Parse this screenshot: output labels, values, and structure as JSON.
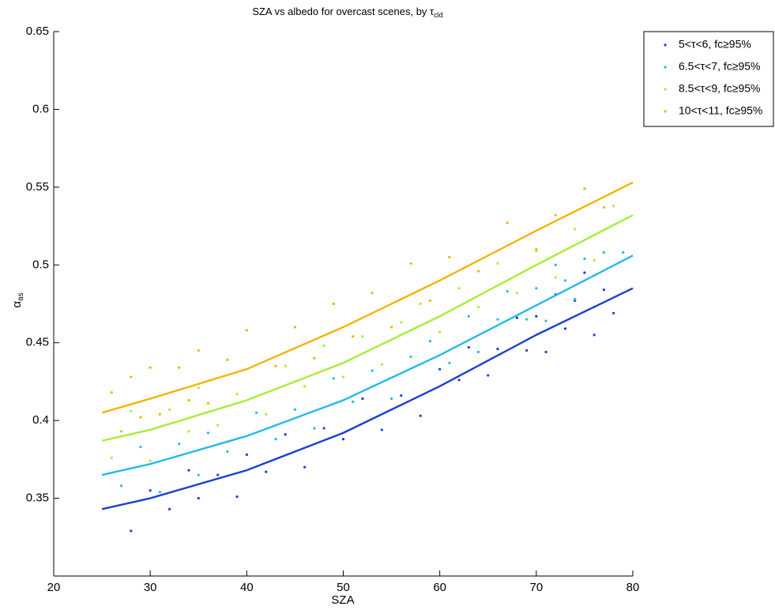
{
  "chart_data": {
    "type": "scatter",
    "title": "SZA vs albedo for overcast scenes, by τ",
    "title_subscript": "cld",
    "x_label": "SZA",
    "y_label": "α",
    "y_label_subscript": "as",
    "xlim": [
      20,
      80
    ],
    "xticks": [
      20,
      30,
      40,
      50,
      60,
      70,
      80
    ],
    "ylim": [
      0.3,
      0.65
    ],
    "yticks": [
      0.35,
      0.4,
      0.45,
      0.5,
      0.55,
      0.6,
      0.65
    ],
    "legend": "outside-upper-right",
    "series": [
      {
        "name": "5<τ<6, fc≥95%",
        "color": "#1c3fd4",
        "x": [
          28,
          30,
          32,
          34,
          35,
          37,
          39,
          40,
          42,
          44,
          46,
          48,
          50,
          52,
          54,
          56,
          58,
          60,
          62,
          63,
          65,
          66,
          68,
          69,
          70,
          71,
          72,
          73,
          74,
          75,
          76,
          77,
          78
        ],
        "values": [
          0.329,
          0.355,
          0.343,
          0.368,
          0.35,
          0.365,
          0.351,
          0.378,
          0.367,
          0.391,
          0.37,
          0.395,
          0.388,
          0.414,
          0.394,
          0.416,
          0.403,
          0.433,
          0.426,
          0.447,
          0.429,
          0.446,
          0.466,
          0.445,
          0.467,
          0.444,
          0.481,
          0.459,
          0.477,
          0.495,
          0.455,
          0.484,
          0.469
        ],
        "fit": {
          "x": [
            25,
            30,
            40,
            50,
            60,
            70,
            80
          ],
          "values": [
            0.343,
            0.35,
            0.368,
            0.392,
            0.422,
            0.455,
            0.485
          ]
        }
      },
      {
        "name": "6.5<τ<7, fc≥95%",
        "color": "#22b8ec",
        "x": [
          27,
          29,
          31,
          33,
          35,
          36,
          38,
          41,
          43,
          45,
          47,
          49,
          51,
          53,
          55,
          57,
          59,
          61,
          63,
          64,
          66,
          67,
          69,
          70,
          71,
          72,
          73,
          74,
          75,
          76,
          77,
          79
        ],
        "values": [
          0.358,
          0.383,
          0.354,
          0.385,
          0.365,
          0.392,
          0.38,
          0.405,
          0.388,
          0.407,
          0.395,
          0.427,
          0.412,
          0.432,
          0.414,
          0.441,
          0.451,
          0.437,
          0.467,
          0.444,
          0.465,
          0.483,
          0.465,
          0.485,
          0.464,
          0.5,
          0.49,
          0.478,
          0.504,
          0.473,
          0.508,
          0.508
        ],
        "fit": {
          "x": [
            25,
            30,
            40,
            50,
            60,
            70,
            80
          ],
          "values": [
            0.365,
            0.372,
            0.39,
            0.413,
            0.442,
            0.474,
            0.506
          ]
        }
      },
      {
        "name": "8.5<τ<9, fc≥95%",
        "color": "#a6ee34",
        "x": [
          26,
          28,
          30,
          32,
          34,
          35,
          37,
          39,
          42,
          44,
          46,
          48,
          50,
          52,
          54,
          56,
          58,
          60,
          62,
          64,
          66,
          68,
          70,
          72,
          74,
          76,
          78
        ],
        "values": [
          0.376,
          0.406,
          0.374,
          0.407,
          0.393,
          0.421,
          0.397,
          0.417,
          0.404,
          0.435,
          0.422,
          0.448,
          0.428,
          0.454,
          0.436,
          0.463,
          0.475,
          0.457,
          0.485,
          0.473,
          0.501,
          0.482,
          0.509,
          0.492,
          0.523,
          0.503,
          0.538
        ],
        "fit": {
          "x": [
            25,
            30,
            40,
            50,
            60,
            70,
            80
          ],
          "values": [
            0.387,
            0.394,
            0.413,
            0.437,
            0.467,
            0.5,
            0.532
          ]
        }
      },
      {
        "name": "10<τ<11, fc≥95%",
        "color": "#f2b400",
        "x": [
          26,
          27,
          28,
          29,
          30,
          31,
          33,
          34,
          35,
          36,
          38,
          40,
          43,
          45,
          47,
          49,
          51,
          53,
          55,
          57,
          59,
          61,
          64,
          67,
          70,
          72,
          75,
          77
        ],
        "values": [
          0.418,
          0.393,
          0.428,
          0.402,
          0.434,
          0.404,
          0.434,
          0.413,
          0.445,
          0.411,
          0.439,
          0.458,
          0.435,
          0.46,
          0.44,
          0.475,
          0.454,
          0.482,
          0.46,
          0.501,
          0.477,
          0.505,
          0.496,
          0.527,
          0.51,
          0.532,
          0.549,
          0.537
        ],
        "fit": {
          "x": [
            25,
            30,
            40,
            50,
            60,
            70,
            80
          ],
          "values": [
            0.405,
            0.414,
            0.433,
            0.46,
            0.49,
            0.522,
            0.553
          ]
        }
      }
    ]
  }
}
